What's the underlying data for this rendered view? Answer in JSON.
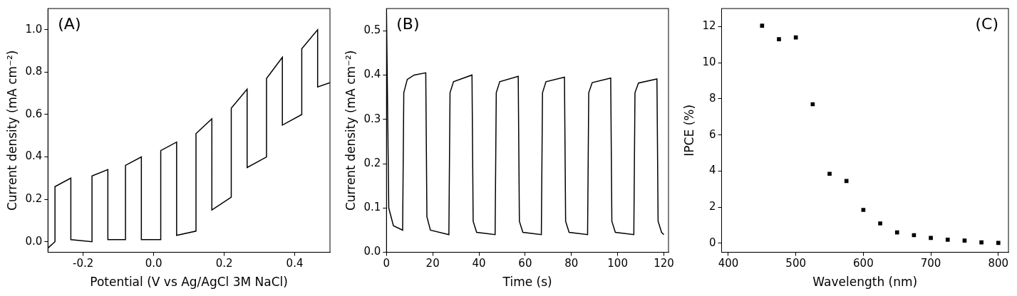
{
  "chart_data": [
    {
      "type": "line",
      "annotation": "(A)",
      "x_label": "Potential (V vs Ag/AgCl 3M NaCl)",
      "y_label": "Current density (mA cm⁻²)",
      "color": "#000000",
      "grid": false,
      "x": [
        -0.3,
        -0.28,
        -0.28,
        -0.235,
        -0.235,
        -0.175,
        -0.175,
        -0.13,
        -0.13,
        -0.08,
        -0.08,
        -0.035,
        -0.035,
        0.02,
        0.02,
        0.065,
        0.065,
        0.12,
        0.12,
        0.165,
        0.165,
        0.22,
        0.22,
        0.265,
        0.265,
        0.32,
        0.32,
        0.365,
        0.365,
        0.42,
        0.42,
        0.465,
        0.465,
        0.5
      ],
      "values": [
        -0.03,
        0.0,
        0.26,
        0.3,
        0.01,
        0.0,
        0.31,
        0.34,
        0.01,
        0.01,
        0.36,
        0.4,
        0.01,
        0.01,
        0.43,
        0.47,
        0.03,
        0.05,
        0.51,
        0.58,
        0.15,
        0.21,
        0.63,
        0.72,
        0.35,
        0.4,
        0.77,
        0.87,
        0.55,
        0.6,
        0.91,
        1.0,
        0.73,
        0.75
      ],
      "xlim": [
        -0.3,
        0.5
      ],
      "xticks": [
        -0.2,
        {
          "value": 0,
          "label": "0.0"
        },
        0.2,
        0.4
      ],
      "ylim": [
        -0.05,
        1.1
      ],
      "yticks": [
        {
          "value": 0,
          "label": "0.0"
        },
        0.2,
        0.4,
        0.6,
        0.8,
        {
          "value": 1,
          "label": "1.0"
        }
      ]
    },
    {
      "type": "line",
      "annotation": "(B)",
      "x_label": "Time (s)",
      "y_label": "Current density (mA cm⁻²)",
      "color": "#000000",
      "grid": false,
      "x": [
        0,
        1,
        3,
        7,
        7.5,
        9,
        12,
        17,
        17.5,
        19,
        27,
        27.5,
        29,
        37,
        37.5,
        39,
        47,
        47.5,
        49,
        57,
        57.5,
        59,
        67,
        67.5,
        69,
        77,
        77.5,
        79,
        87,
        87.5,
        89,
        97,
        97.5,
        99,
        107,
        107.5,
        109,
        117,
        117.5,
        119,
        120
      ],
      "values": [
        0.55,
        0.1,
        0.06,
        0.05,
        0.36,
        0.39,
        0.4,
        0.405,
        0.08,
        0.05,
        0.04,
        0.36,
        0.385,
        0.4,
        0.07,
        0.045,
        0.04,
        0.36,
        0.385,
        0.397,
        0.07,
        0.045,
        0.04,
        0.36,
        0.385,
        0.395,
        0.07,
        0.045,
        0.04,
        0.36,
        0.383,
        0.393,
        0.07,
        0.045,
        0.04,
        0.36,
        0.382,
        0.391,
        0.07,
        0.045,
        0.04
      ],
      "xlim": [
        0,
        122
      ],
      "xticks": [
        0,
        20,
        40,
        60,
        80,
        100,
        120
      ],
      "ylim": [
        0,
        0.55
      ],
      "yticks": [
        {
          "value": 0,
          "label": "0.0"
        },
        0.1,
        0.2,
        0.3,
        0.4,
        0.5
      ]
    },
    {
      "type": "scatter",
      "annotation": "(C)",
      "x_label": "Wavelength (nm)",
      "y_label": "IPCE (%)",
      "color": "#000000",
      "marker": "square",
      "grid": false,
      "x": [
        450,
        475,
        500,
        525,
        550,
        575,
        600,
        625,
        650,
        675,
        700,
        725,
        750,
        775,
        800
      ],
      "values": [
        12.05,
        11.3,
        11.4,
        7.7,
        3.85,
        3.45,
        1.85,
        1.1,
        0.6,
        0.45,
        0.3,
        0.2,
        0.15,
        0.05,
        0.02
      ],
      "xlim": [
        390,
        815
      ],
      "xticks": [
        400,
        500,
        600,
        700,
        800
      ],
      "ylim": [
        -0.5,
        13
      ],
      "yticks": [
        0,
        2,
        4,
        6,
        8,
        10,
        12
      ]
    }
  ]
}
